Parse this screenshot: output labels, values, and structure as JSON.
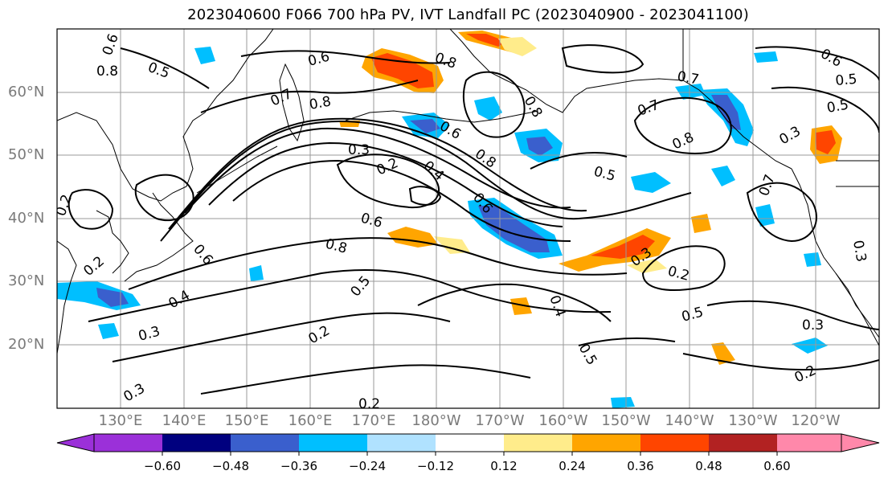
{
  "title": "2023040600 F066 700 hPa PV, IVT Landfall PC (2023040900 - 2023041100)",
  "map": {
    "region": "North Pacific",
    "lat_labels": [
      "60°N",
      "50°N",
      "40°N",
      "30°N",
      "20°N"
    ],
    "lon_labels": [
      "130°E",
      "140°E",
      "150°E",
      "160°E",
      "170°E",
      "180°W",
      "170°W",
      "160°W",
      "150°W",
      "140°W",
      "130°W",
      "120°W"
    ],
    "contour_labels": [
      {
        "id": "c1",
        "text": "0.8"
      },
      {
        "id": "c2",
        "text": "0.6"
      },
      {
        "id": "c3",
        "text": "0.5"
      },
      {
        "id": "c4",
        "text": "0.6"
      },
      {
        "id": "c5",
        "text": "0.8"
      },
      {
        "id": "c6",
        "text": "0.7"
      },
      {
        "id": "c7",
        "text": "0.8"
      },
      {
        "id": "c8",
        "text": "0.6"
      },
      {
        "id": "c9",
        "text": "0.3"
      },
      {
        "id": "c10",
        "text": "0.2"
      },
      {
        "id": "c11",
        "text": "0.4"
      },
      {
        "id": "c12",
        "text": "0.8"
      },
      {
        "id": "c13",
        "text": "0.6"
      },
      {
        "id": "c14",
        "text": "0.5"
      },
      {
        "id": "c15",
        "text": "0.7"
      },
      {
        "id": "c16",
        "text": "0.8"
      },
      {
        "id": "c17",
        "text": "0.3"
      },
      {
        "id": "c18",
        "text": "0.5"
      },
      {
        "id": "c19",
        "text": "0.6"
      },
      {
        "id": "c20",
        "text": "0.8"
      },
      {
        "id": "c21",
        "text": "0.6"
      },
      {
        "id": "c22",
        "text": "0.5"
      },
      {
        "id": "c23",
        "text": "0.2"
      },
      {
        "id": "c24",
        "text": "0.3"
      },
      {
        "id": "c25",
        "text": "0.4"
      },
      {
        "id": "c26",
        "text": "0.5"
      },
      {
        "id": "c27",
        "text": "0.3"
      },
      {
        "id": "c28",
        "text": "0.2"
      },
      {
        "id": "c29",
        "text": "0.2"
      },
      {
        "id": "c30",
        "text": "0.5"
      },
      {
        "id": "c31",
        "text": "0.3"
      },
      {
        "id": "c32",
        "text": "0.2"
      },
      {
        "id": "c33",
        "text": "0.2"
      },
      {
        "id": "c34",
        "text": "0.3"
      },
      {
        "id": "c35",
        "text": "0.4"
      },
      {
        "id": "c36",
        "text": "0.7"
      },
      {
        "id": "c37",
        "text": "0.6"
      },
      {
        "id": "c38",
        "text": "0.2"
      },
      {
        "id": "c39",
        "text": "0.7"
      },
      {
        "id": "c40",
        "text": "0.5"
      },
      {
        "id": "c41",
        "text": "0.3"
      },
      {
        "id": "c42",
        "text": "0.8"
      }
    ]
  },
  "colorbar": {
    "colors": [
      "#9b30d9",
      "#00007f",
      "#3a5fcd",
      "#00bfff",
      "#b0e2ff",
      "#ffffff",
      "#ffec8b",
      "#ffa500",
      "#ff4500",
      "#b22222",
      "#ff88aa"
    ],
    "tick_labels": [
      "−0.60",
      "−0.48",
      "−0.36",
      "−0.24",
      "−0.12",
      "0.12",
      "0.24",
      "0.36",
      "0.48",
      "0.60"
    ]
  },
  "colors": {
    "contour": "#000000",
    "gridline": "#9a9a9a",
    "axis_label": "#7a7a7a"
  }
}
